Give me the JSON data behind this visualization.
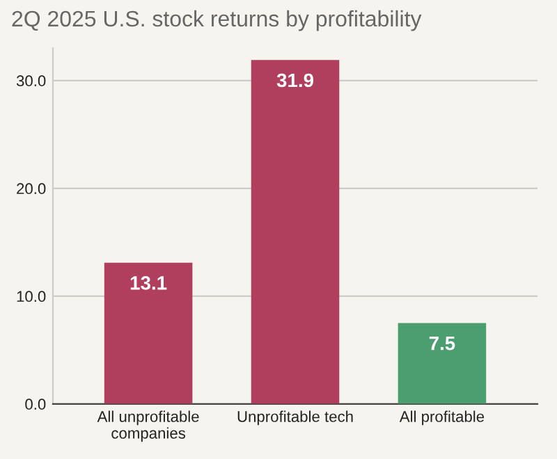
{
  "chart_data": {
    "type": "bar",
    "title": "2Q 2025 U.S. stock returns by profitability",
    "categories": [
      "All unprofitable\ncompanies",
      "Unprofitable tech",
      "All profitable"
    ],
    "values": [
      13.1,
      31.9,
      7.5
    ],
    "colors": [
      "#b03f5e",
      "#b03f5e",
      "#4a9e70"
    ],
    "yticks": [
      {
        "value": 0,
        "label": "0.0"
      },
      {
        "value": 10,
        "label": "10.0"
      },
      {
        "value": 20,
        "label": "20.0"
      },
      {
        "value": 30,
        "label": "30.0"
      }
    ],
    "ylim": [
      0,
      33
    ],
    "grid": "y",
    "data_labels": true
  }
}
